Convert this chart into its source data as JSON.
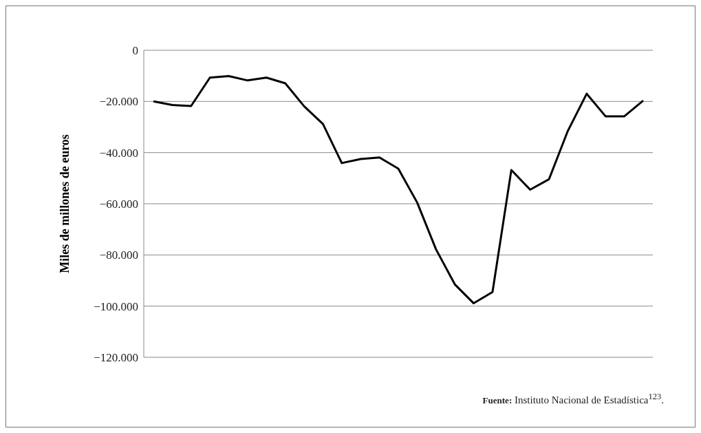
{
  "chart_data": {
    "type": "line",
    "ylabel": "Miles de millones de euros",
    "categories": [
      null,
      null,
      null,
      null,
      null,
      null,
      null,
      null,
      null,
      null,
      null,
      null,
      null,
      null,
      null,
      null,
      null,
      null,
      null,
      null,
      null,
      null,
      null,
      null,
      null,
      null,
      null
    ],
    "series": [
      {
        "color": "#000000",
        "values": [
          -20000,
          -21400,
          -21800,
          -10700,
          -10100,
          -11800,
          -10700,
          -12900,
          -21900,
          -28800,
          -44100,
          -42500,
          -41900,
          -46300,
          -59500,
          -77800,
          -91500,
          -98900,
          -94500,
          -46800,
          -54500,
          -50400,
          -31500,
          -17000,
          -25800,
          -25800,
          -19700
        ]
      }
    ],
    "ylim": [
      -120000,
      0
    ],
    "yticks": [
      {
        "value": 0,
        "label": "0"
      },
      {
        "value": -20000,
        "label": "−20.000"
      },
      {
        "value": -40000,
        "label": "−40.000"
      },
      {
        "value": -60000,
        "label": "−60.000"
      },
      {
        "value": -80000,
        "label": "−80.000"
      },
      {
        "value": -100000,
        "label": "−100.000"
      },
      {
        "value": -120000,
        "label": "−120.000"
      }
    ],
    "grid": "y",
    "tick_labels": "y",
    "marker": "none",
    "line_style": "solid",
    "legend": false,
    "annotations": [
      "Fuente: Instituto Nacional de Estadística$^{123}$."
    ]
  }
}
